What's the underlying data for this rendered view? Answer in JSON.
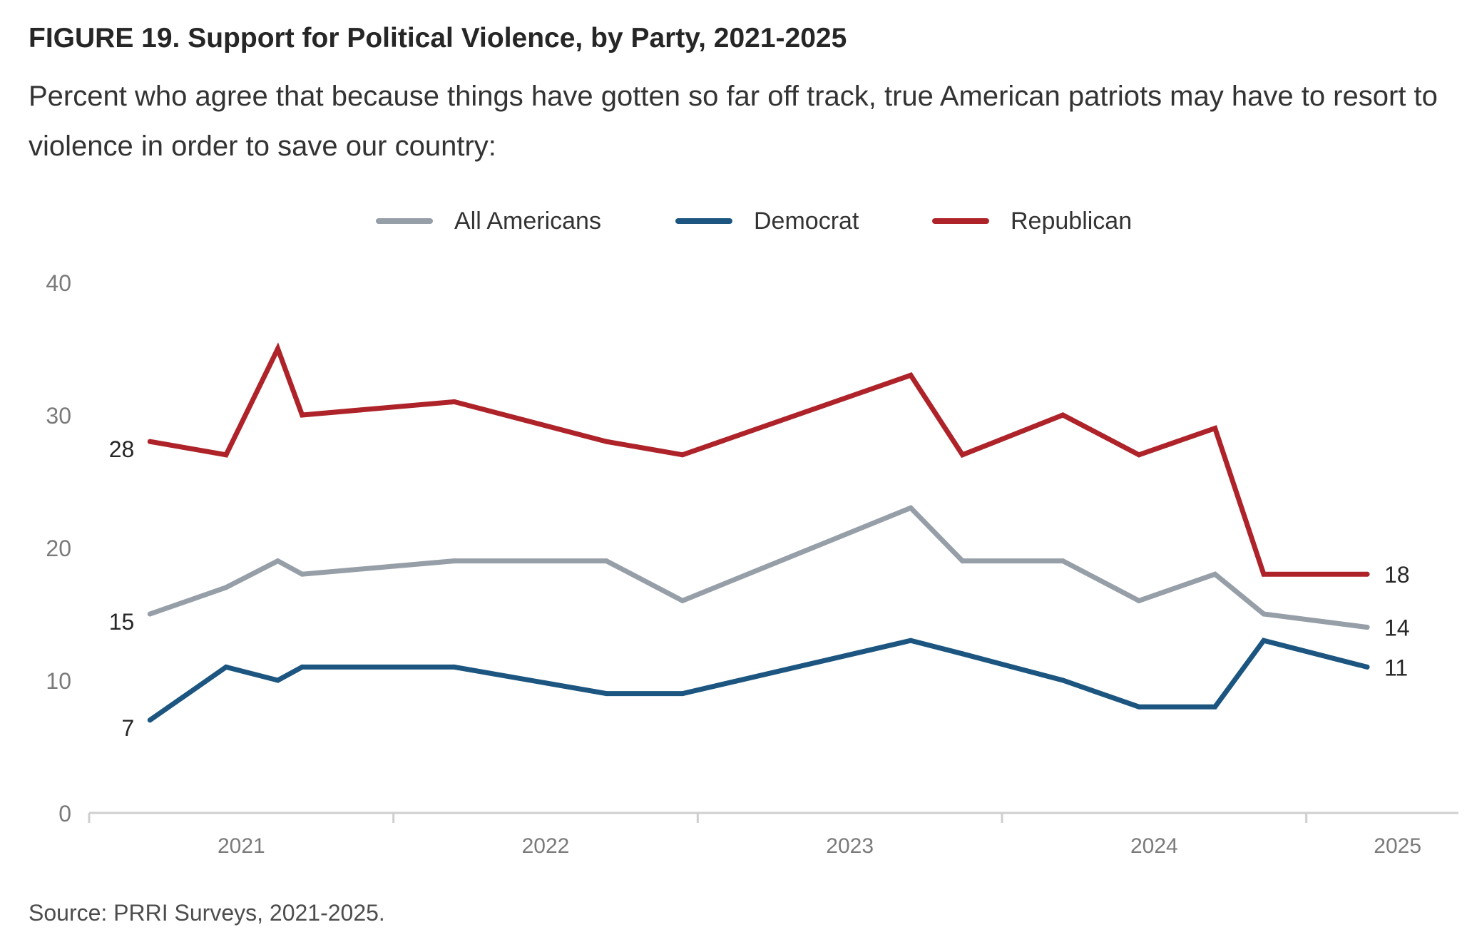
{
  "title": "FIGURE 19.  Support for Political Violence, by Party, 2021-2025",
  "subtitle": "Percent who agree that because things have gotten so far off track, true American patriots may have to resort to violence in order to save our country:",
  "source": "Source: PRRI Surveys, 2021-2025.",
  "colors": {
    "all_americans": "#969ea8",
    "democrat": "#1b5580",
    "republican": "#ae2329",
    "axis": "#cfcfcf",
    "tick_label": "#7a7a7a"
  },
  "chart_data": {
    "type": "line",
    "title": "Support for Political Violence, by Party, 2021-2025",
    "xlabel": "",
    "ylabel": "",
    "ylim": [
      0,
      40
    ],
    "yticks": [
      "0",
      "10",
      "20",
      "30",
      "40"
    ],
    "xticks": [
      {
        "label": "2021",
        "x": 2021.5
      },
      {
        "label": "2022",
        "x": 2022.5
      },
      {
        "label": "2023",
        "x": 2023.5
      },
      {
        "label": "2024",
        "x": 2024.5
      },
      {
        "label": "2025",
        "x": 2025.3
      }
    ],
    "xlim": [
      2021.0,
      2025.5
    ],
    "grid": false,
    "legend_position": "top-center",
    "x": [
      2021.2,
      2021.45,
      2021.62,
      2021.7,
      2022.2,
      2022.7,
      2022.95,
      2023.7,
      2023.87,
      2024.2,
      2024.45,
      2024.7,
      2024.86,
      2025.2
    ],
    "series": [
      {
        "name": "All Americans",
        "color_key": "all_americans",
        "values": [
          15,
          17,
          19,
          18,
          19,
          19,
          16,
          23,
          19,
          19,
          16,
          18,
          15,
          14
        ],
        "start_label": "15",
        "end_label": "14"
      },
      {
        "name": "Democrat",
        "color_key": "democrat",
        "values": [
          7,
          11,
          10,
          11,
          11,
          9,
          9,
          13,
          12,
          10,
          8,
          8,
          13,
          11
        ],
        "start_label": "7",
        "end_label": "11"
      },
      {
        "name": "Republican",
        "color_key": "republican",
        "values": [
          28,
          27,
          35,
          30,
          31,
          28,
          27,
          33,
          27,
          30,
          27,
          29,
          18,
          18
        ],
        "start_label": "28",
        "end_label": "18"
      }
    ]
  }
}
